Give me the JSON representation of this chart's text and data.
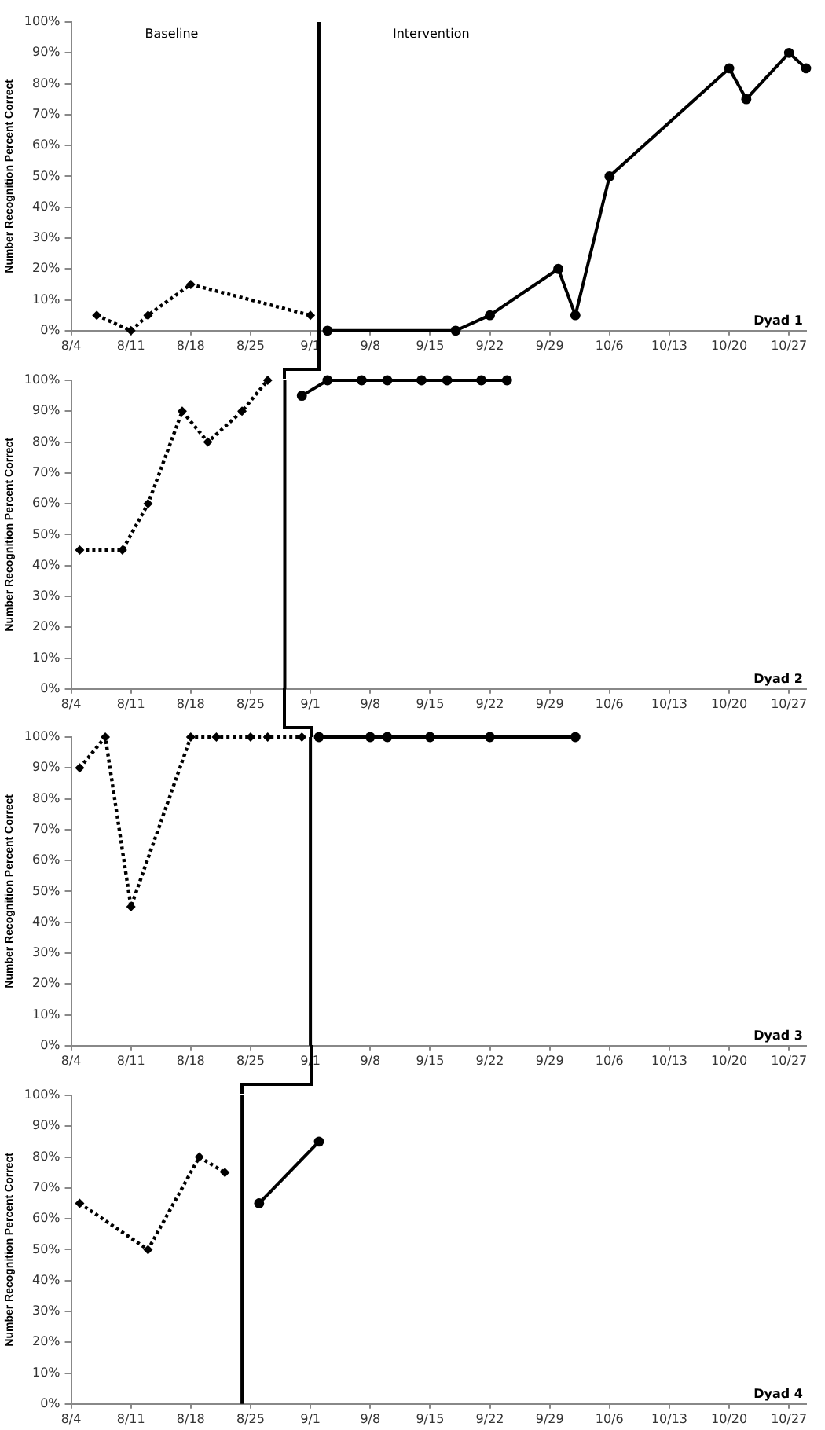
{
  "chart_data": [
    {
      "type": "line",
      "ylabel": "Number Recognition Percent Correct",
      "xlim": [
        "--08-04",
        "--10-29"
      ],
      "ylim": [
        0,
        100
      ],
      "xticks": [
        {
          "value": "--08-04",
          "label": "8/4"
        },
        {
          "value": "--08-11",
          "label": "8/11"
        },
        {
          "value": "--08-18",
          "label": "8/18"
        },
        {
          "value": "--08-25",
          "label": "8/25"
        },
        {
          "value": "--09-01",
          "label": "9/1"
        },
        {
          "value": "--09-08",
          "label": "9/8"
        },
        {
          "value": "--09-15",
          "label": "9/15"
        },
        {
          "value": "--09-22",
          "label": "9/22"
        },
        {
          "value": "--09-29",
          "label": "9/29"
        },
        {
          "value": "--10-06",
          "label": "10/6"
        },
        {
          "value": "--10-13",
          "label": "10/13"
        },
        {
          "value": "--10-20",
          "label": "10/20"
        },
        {
          "value": "--10-27",
          "label": "10/27"
        }
      ],
      "yticks": [
        {
          "value": 0,
          "label": "0%"
        },
        {
          "value": 10,
          "label": "10%"
        },
        {
          "value": 20,
          "label": "20%"
        },
        {
          "value": 30,
          "label": "30%"
        },
        {
          "value": 40,
          "label": "40%"
        },
        {
          "value": 50,
          "label": "50%"
        },
        {
          "value": 60,
          "label": "60%"
        },
        {
          "value": 70,
          "label": "70%"
        },
        {
          "value": 80,
          "label": "80%"
        },
        {
          "value": 90,
          "label": "90%"
        },
        {
          "value": 100,
          "label": "100%"
        }
      ],
      "grid": false,
      "legend": false,
      "series": [
        {
          "color": "#000000",
          "marker": "diamond",
          "line_style": "dotted",
          "x": [
            "--08-07",
            "--08-11",
            "--08-13",
            "--08-18",
            "--09-01"
          ],
          "values": [
            5,
            0,
            5,
            15,
            5
          ]
        },
        {
          "color": "#000000",
          "marker": "circle",
          "line_style": "solid",
          "x": [
            "--09-03",
            "--09-18",
            "--09-22",
            "--09-30",
            "--10-02",
            "--10-06",
            "--10-20",
            "--10-22",
            "--10-27",
            "--10-29"
          ],
          "values": [
            0,
            0,
            5,
            20,
            5,
            50,
            85,
            75,
            90,
            85
          ]
        }
      ],
      "ref_lines": [
        {
          "axis": "x",
          "value": "--09-02",
          "color": "#000000"
        }
      ],
      "annotations": [
        "Baseline",
        "Intervention",
        "Dyad 1"
      ]
    },
    {
      "type": "line",
      "ylabel": "Number Recognition Percent Correct",
      "xlim": [
        "--08-04",
        "--10-29"
      ],
      "ylim": [
        0,
        100
      ],
      "xticks": [
        {
          "value": "--08-04",
          "label": "8/4"
        },
        {
          "value": "--08-11",
          "label": "8/11"
        },
        {
          "value": "--08-18",
          "label": "8/18"
        },
        {
          "value": "--08-25",
          "label": "8/25"
        },
        {
          "value": "--09-01",
          "label": "9/1"
        },
        {
          "value": "--09-08",
          "label": "9/8"
        },
        {
          "value": "--09-15",
          "label": "9/15"
        },
        {
          "value": "--09-22",
          "label": "9/22"
        },
        {
          "value": "--09-29",
          "label": "9/29"
        },
        {
          "value": "--10-06",
          "label": "10/6"
        },
        {
          "value": "--10-13",
          "label": "10/13"
        },
        {
          "value": "--10-20",
          "label": "10/20"
        },
        {
          "value": "--10-27",
          "label": "10/27"
        }
      ],
      "yticks": [
        {
          "value": 0,
          "label": "0%"
        },
        {
          "value": 10,
          "label": "10%"
        },
        {
          "value": 20,
          "label": "20%"
        },
        {
          "value": 30,
          "label": "30%"
        },
        {
          "value": 40,
          "label": "40%"
        },
        {
          "value": 50,
          "label": "50%"
        },
        {
          "value": 60,
          "label": "60%"
        },
        {
          "value": 70,
          "label": "70%"
        },
        {
          "value": 80,
          "label": "80%"
        },
        {
          "value": 90,
          "label": "90%"
        },
        {
          "value": 100,
          "label": "100%"
        }
      ],
      "grid": false,
      "legend": false,
      "series": [
        {
          "color": "#000000",
          "marker": "diamond",
          "line_style": "dotted",
          "x": [
            "--08-05",
            "--08-10",
            "--08-13",
            "--08-17",
            "--08-20",
            "--08-24",
            "--08-27"
          ],
          "values": [
            45,
            45,
            60,
            90,
            80,
            90,
            100
          ]
        },
        {
          "color": "#000000",
          "marker": "circle",
          "line_style": "solid",
          "x": [
            "--08-31",
            "--09-03",
            "--09-07",
            "--09-10",
            "--09-14",
            "--09-17",
            "--09-21",
            "--09-24"
          ],
          "values": [
            95,
            100,
            100,
            100,
            100,
            100,
            100,
            100
          ]
        }
      ],
      "ref_lines": [
        {
          "axis": "x",
          "value": "--08-29",
          "color": "#000000"
        }
      ],
      "annotations": [
        "Dyad 2"
      ]
    },
    {
      "type": "line",
      "ylabel": "Number Recognition Percent Correct",
      "xlim": [
        "--08-04",
        "--10-29"
      ],
      "ylim": [
        0,
        100
      ],
      "xticks": [
        {
          "value": "--08-04",
          "label": "8/4"
        },
        {
          "value": "--08-11",
          "label": "8/11"
        },
        {
          "value": "--08-18",
          "label": "8/18"
        },
        {
          "value": "--08-25",
          "label": "8/25"
        },
        {
          "value": "--09-01",
          "label": "9/1"
        },
        {
          "value": "--09-08",
          "label": "9/8"
        },
        {
          "value": "--09-15",
          "label": "9/15"
        },
        {
          "value": "--09-22",
          "label": "9/22"
        },
        {
          "value": "--09-29",
          "label": "9/29"
        },
        {
          "value": "--10-06",
          "label": "10/6"
        },
        {
          "value": "--10-13",
          "label": "10/13"
        },
        {
          "value": "--10-20",
          "label": "10/20"
        },
        {
          "value": "--10-27",
          "label": "10/27"
        }
      ],
      "yticks": [
        {
          "value": 0,
          "label": "0%"
        },
        {
          "value": 10,
          "label": "10%"
        },
        {
          "value": 20,
          "label": "20%"
        },
        {
          "value": 30,
          "label": "30%"
        },
        {
          "value": 40,
          "label": "40%"
        },
        {
          "value": 50,
          "label": "50%"
        },
        {
          "value": 60,
          "label": "60%"
        },
        {
          "value": 70,
          "label": "70%"
        },
        {
          "value": 80,
          "label": "80%"
        },
        {
          "value": 90,
          "label": "90%"
        },
        {
          "value": 100,
          "label": "100%"
        }
      ],
      "grid": false,
      "legend": false,
      "series": [
        {
          "color": "#000000",
          "marker": "diamond",
          "line_style": "dotted",
          "x": [
            "--08-05",
            "--08-08",
            "--08-11",
            "--08-18",
            "--08-21",
            "--08-25",
            "--08-27",
            "--08-31"
          ],
          "values": [
            90,
            100,
            45,
            100,
            100,
            100,
            100,
            100
          ]
        },
        {
          "color": "#000000",
          "marker": "circle",
          "line_style": "solid",
          "x": [
            "--09-02",
            "--09-08",
            "--09-10",
            "--09-15",
            "--09-22",
            "--10-02"
          ],
          "values": [
            100,
            100,
            100,
            100,
            100,
            100
          ]
        }
      ],
      "ref_lines": [
        {
          "axis": "x",
          "value": "--09-01",
          "color": "#000000"
        }
      ],
      "annotations": [
        "Dyad 3"
      ]
    },
    {
      "type": "line",
      "ylabel": "Number Recognition Percent Correct",
      "xlim": [
        "--08-04",
        "--10-29"
      ],
      "ylim": [
        0,
        100
      ],
      "xticks": [
        {
          "value": "--08-04",
          "label": "8/4"
        },
        {
          "value": "--08-11",
          "label": "8/11"
        },
        {
          "value": "--08-18",
          "label": "8/18"
        },
        {
          "value": "--08-25",
          "label": "8/25"
        },
        {
          "value": "--09-01",
          "label": "9/1"
        },
        {
          "value": "--09-08",
          "label": "9/8"
        },
        {
          "value": "--09-15",
          "label": "9/15"
        },
        {
          "value": "--09-22",
          "label": "9/22"
        },
        {
          "value": "--09-29",
          "label": "9/29"
        },
        {
          "value": "--10-06",
          "label": "10/6"
        },
        {
          "value": "--10-13",
          "label": "10/13"
        },
        {
          "value": "--10-20",
          "label": "10/20"
        },
        {
          "value": "--10-27",
          "label": "10/27"
        }
      ],
      "yticks": [
        {
          "value": 0,
          "label": "0%"
        },
        {
          "value": 10,
          "label": "10%"
        },
        {
          "value": 20,
          "label": "20%"
        },
        {
          "value": 30,
          "label": "30%"
        },
        {
          "value": 40,
          "label": "40%"
        },
        {
          "value": 50,
          "label": "50%"
        },
        {
          "value": 60,
          "label": "60%"
        },
        {
          "value": 70,
          "label": "70%"
        },
        {
          "value": 80,
          "label": "80%"
        },
        {
          "value": 90,
          "label": "90%"
        },
        {
          "value": 100,
          "label": "100%"
        }
      ],
      "grid": false,
      "legend": false,
      "series": [
        {
          "color": "#000000",
          "marker": "diamond",
          "line_style": "dotted",
          "x": [
            "--08-05",
            "--08-13",
            "--08-19",
            "--08-22"
          ],
          "values": [
            65,
            50,
            80,
            75
          ]
        },
        {
          "color": "#000000",
          "marker": "circle",
          "line_style": "solid",
          "x": [
            "--08-26",
            "--09-02"
          ],
          "values": [
            65,
            85
          ]
        }
      ],
      "ref_lines": [
        {
          "axis": "x",
          "value": "--08-24",
          "color": "#000000"
        }
      ],
      "annotations": [
        "Dyad 4"
      ]
    }
  ]
}
